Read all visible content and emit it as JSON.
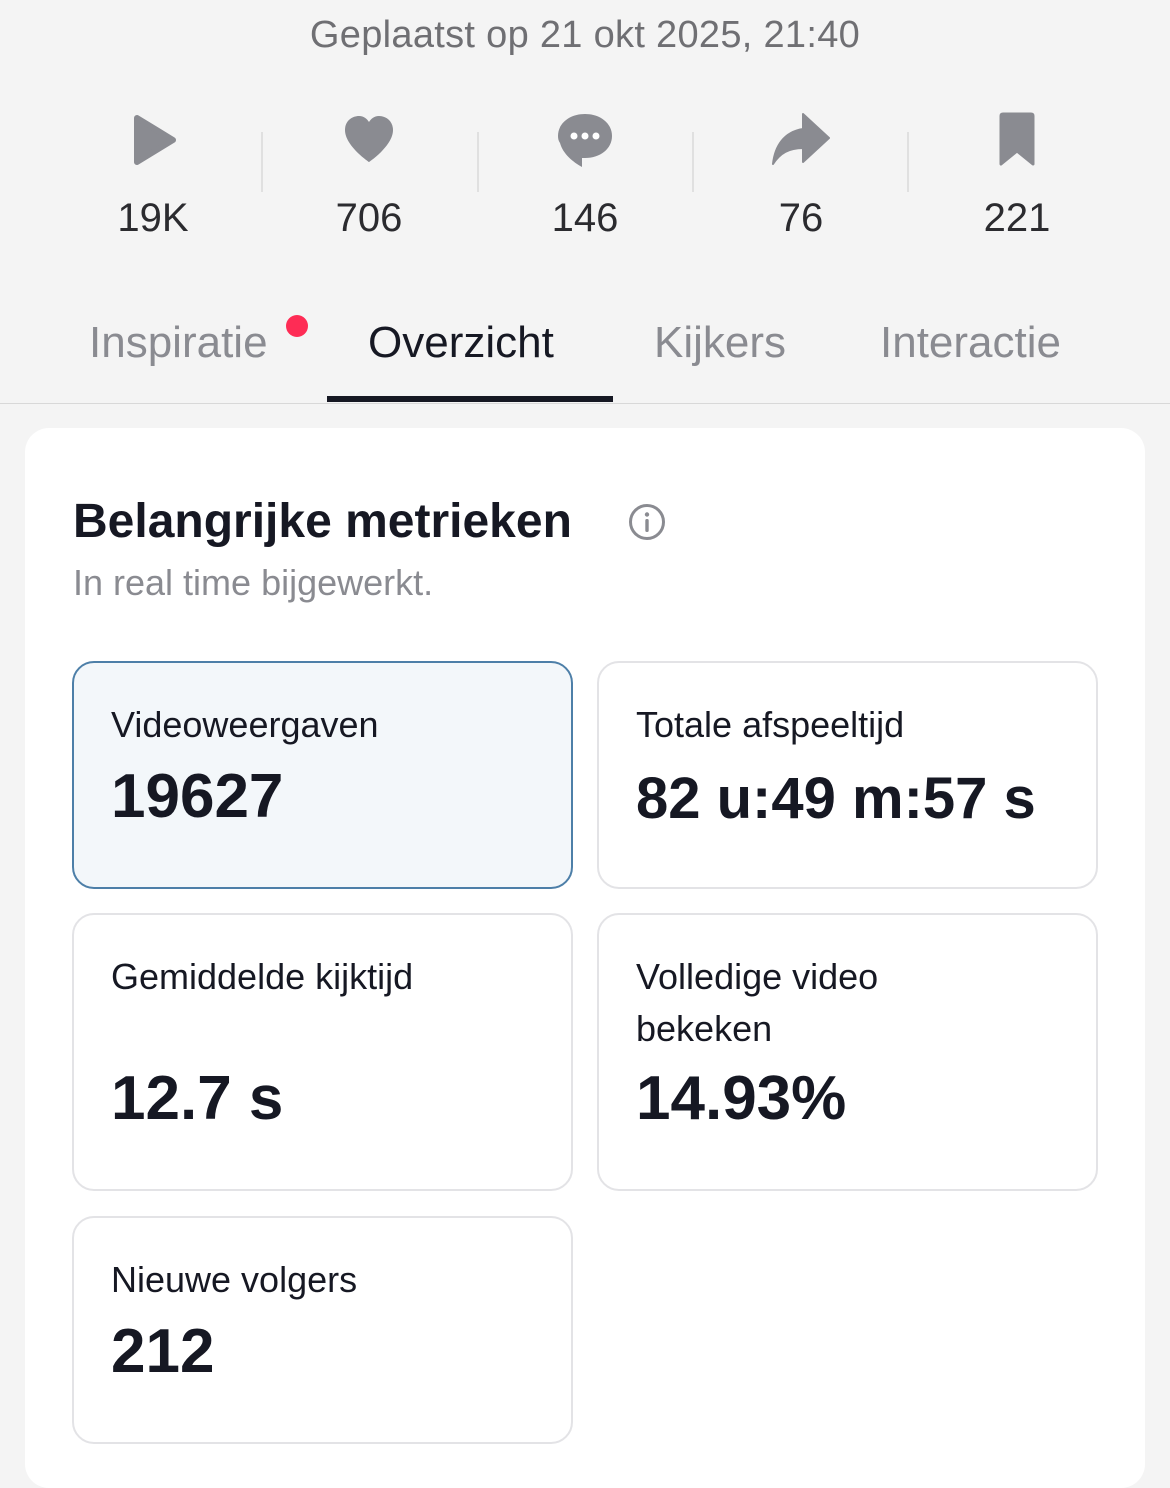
{
  "posted": "Geplaatst op 21 okt 2025, 21:40",
  "stats": [
    {
      "icon": "play-icon",
      "value": "19K"
    },
    {
      "icon": "heart-icon",
      "value": "706"
    },
    {
      "icon": "comment-icon",
      "value": "146"
    },
    {
      "icon": "share-icon",
      "value": "76"
    },
    {
      "icon": "bookmark-icon",
      "value": "221"
    }
  ],
  "tabs": [
    {
      "label": "Inspiratie",
      "has_notification_dot": true
    },
    {
      "label": "Overzicht",
      "active": true
    },
    {
      "label": "Kijkers"
    },
    {
      "label": "Interactie"
    }
  ],
  "section": {
    "title": "Belangrijke metrieken",
    "subtitle": "In real time bijgewerkt."
  },
  "metrics": [
    {
      "label": "Videoweergaven",
      "value": "19627",
      "selected": true
    },
    {
      "label": "Totale afspeeltijd",
      "value": "82 u:49 m:57 s"
    },
    {
      "label": "Gemiddelde kijktijd",
      "value": "12.7 s"
    },
    {
      "label": "Volledige video bekeken",
      "value": "14.93%"
    },
    {
      "label": "Nieuwe volgers",
      "value": "212"
    }
  ],
  "colors": {
    "accent_dot": "#fe2c55",
    "selected_border": "#4d7fa8",
    "selected_bg": "#f3f7fa",
    "icon_gray": "#8a8b91"
  }
}
